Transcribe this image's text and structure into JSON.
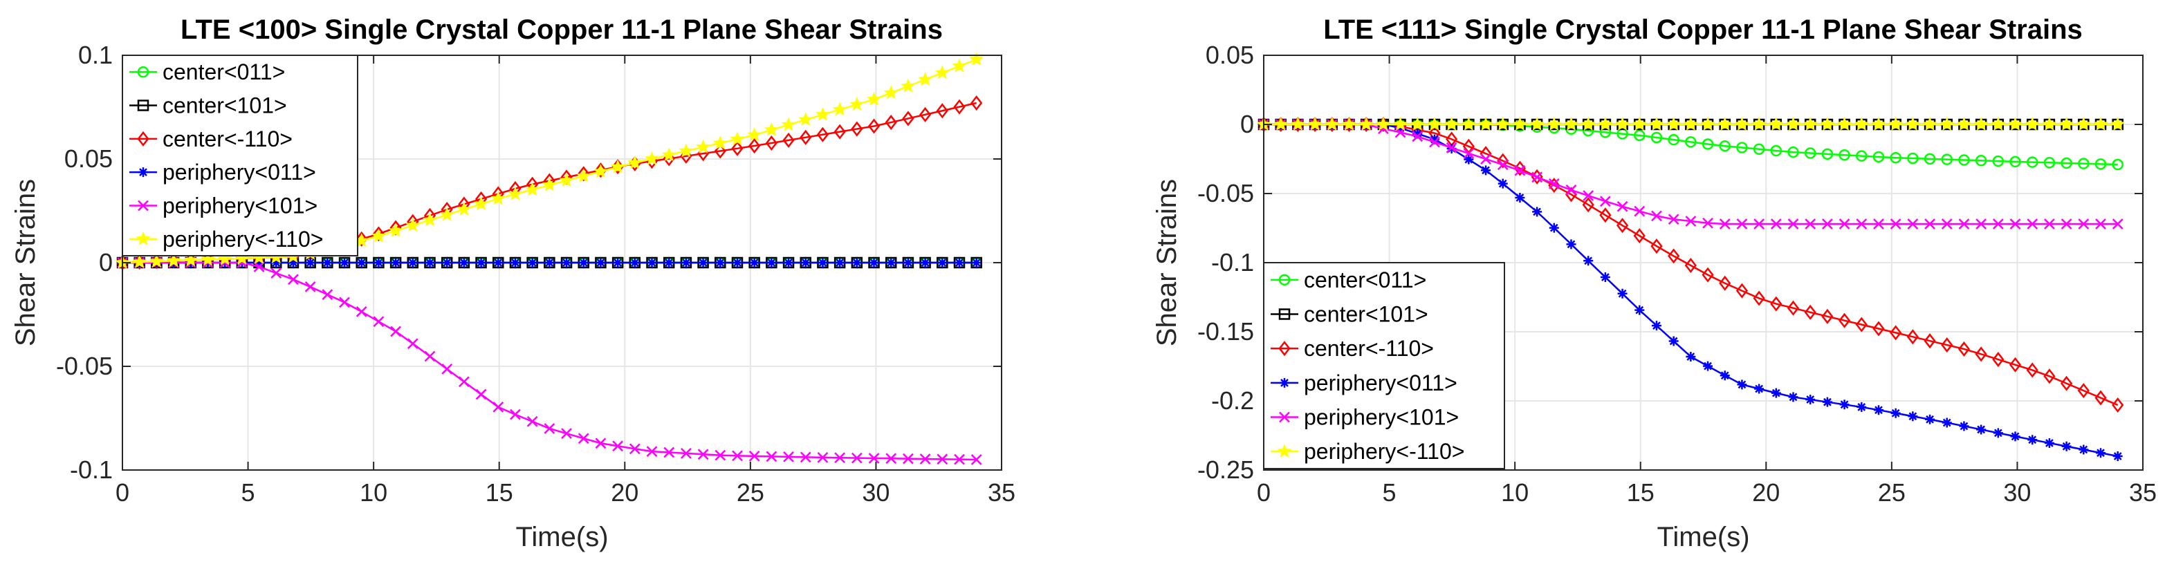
{
  "chart_data": [
    {
      "type": "line",
      "title": "LTE <100> Single Crystal Copper 11-1 Plane Shear Strains",
      "xlabel": "Time(s)",
      "ylabel": "Shear Strains",
      "xlim": [
        0,
        35
      ],
      "ylim": [
        -0.1,
        0.1
      ],
      "xticks": [
        0,
        5,
        10,
        15,
        20,
        25,
        30,
        35
      ],
      "yticks": [
        -0.1,
        -0.05,
        0,
        0.05,
        0.1
      ],
      "xtick_labels": [
        "0",
        "5",
        "10",
        "15",
        "20",
        "25",
        "30",
        "35"
      ],
      "ytick_labels": [
        "-0.1",
        "-0.05",
        "0",
        "0.05",
        "0.1"
      ],
      "legend_position": "top-left",
      "grid": true,
      "x": {
        "start": 0,
        "end": 34,
        "step": 0.68
      },
      "series": [
        {
          "name": "center<011>",
          "color": "#00ff00",
          "marker": "circle",
          "keypoints": [
            [
              0,
              0
            ],
            [
              34,
              0
            ]
          ]
        },
        {
          "name": "center<101>",
          "color": "#000000",
          "marker": "square",
          "keypoints": [
            [
              0,
              0
            ],
            [
              34,
              0
            ]
          ]
        },
        {
          "name": "center<-110>",
          "color": "#ff0000",
          "marker": "diamond",
          "keypoints": [
            [
              0,
              0
            ],
            [
              7,
              0.003
            ],
            [
              10,
              0.013
            ],
            [
              13,
              0.026
            ],
            [
              16,
              0.037
            ],
            [
              20,
              0.047
            ],
            [
              25,
              0.056
            ],
            [
              30,
              0.066
            ],
            [
              34,
              0.077
            ]
          ]
        },
        {
          "name": "periphery<011>",
          "color": "#0000ff",
          "marker": "asterisk",
          "keypoints": [
            [
              0,
              0
            ],
            [
              34,
              0
            ]
          ]
        },
        {
          "name": "periphery<101>",
          "color": "#ff00ff",
          "marker": "x",
          "keypoints": [
            [
              0,
              0
            ],
            [
              5,
              0
            ],
            [
              7,
              -0.009
            ],
            [
              9,
              -0.02
            ],
            [
              11,
              -0.034
            ],
            [
              13,
              -0.052
            ],
            [
              15,
              -0.07
            ],
            [
              17,
              -0.08
            ],
            [
              19,
              -0.087
            ],
            [
              21,
              -0.091
            ],
            [
              24,
              -0.093
            ],
            [
              28,
              -0.094
            ],
            [
              34,
              -0.095
            ]
          ]
        },
        {
          "name": "periphery<-110>",
          "color": "#ffff00",
          "marker": "star",
          "keypoints": [
            [
              0,
              0
            ],
            [
              7,
              0.003
            ],
            [
              10,
              0.012
            ],
            [
              15,
              0.031
            ],
            [
              20,
              0.047
            ],
            [
              25,
              0.061
            ],
            [
              30,
              0.079
            ],
            [
              34,
              0.098
            ]
          ]
        }
      ]
    },
    {
      "type": "line",
      "title": "LTE <111> Single Crystal Copper 11-1 Plane Shear Strains",
      "xlabel": "Time(s)",
      "ylabel": "Shear Strains",
      "xlim": [
        0,
        35
      ],
      "ylim": [
        -0.25,
        0.05
      ],
      "xticks": [
        0,
        5,
        10,
        15,
        20,
        25,
        30,
        35
      ],
      "yticks": [
        -0.25,
        -0.2,
        -0.15,
        -0.1,
        -0.05,
        0,
        0.05
      ],
      "xtick_labels": [
        "0",
        "5",
        "10",
        "15",
        "20",
        "25",
        "30",
        "35"
      ],
      "ytick_labels": [
        "-0.25",
        "-0.2",
        "-0.15",
        "-0.1",
        "-0.05",
        "0",
        "0.05"
      ],
      "legend_position": "bottom-left",
      "grid": true,
      "x": {
        "start": 0,
        "end": 34,
        "step": 0.68
      },
      "series": [
        {
          "name": "center<011>",
          "color": "#00ff00",
          "marker": "circle",
          "keypoints": [
            [
              0,
              0
            ],
            [
              9,
              0
            ],
            [
              12,
              -0.003
            ],
            [
              15,
              -0.008
            ],
            [
              18,
              -0.015
            ],
            [
              21,
              -0.02
            ],
            [
              25,
              -0.024
            ],
            [
              30,
              -0.027
            ],
            [
              34,
              -0.029
            ]
          ]
        },
        {
          "name": "center<101>",
          "color": "#000000",
          "marker": "square",
          "keypoints": [
            [
              0,
              0
            ],
            [
              34,
              0
            ]
          ]
        },
        {
          "name": "center<-110>",
          "color": "#ff0000",
          "marker": "diamond",
          "keypoints": [
            [
              0,
              0
            ],
            [
              5,
              0
            ],
            [
              7,
              -0.007
            ],
            [
              10,
              -0.03
            ],
            [
              12,
              -0.048
            ],
            [
              14,
              -0.07
            ],
            [
              16,
              -0.092
            ],
            [
              18,
              -0.112
            ],
            [
              20,
              -0.128
            ],
            [
              22,
              -0.137
            ],
            [
              25,
              -0.15
            ],
            [
              28,
              -0.163
            ],
            [
              31,
              -0.18
            ],
            [
              34,
              -0.203
            ]
          ]
        },
        {
          "name": "periphery<011>",
          "color": "#0000ff",
          "marker": "asterisk",
          "keypoints": [
            [
              0,
              0
            ],
            [
              5,
              0
            ],
            [
              7,
              -0.012
            ],
            [
              9,
              -0.035
            ],
            [
              11,
              -0.065
            ],
            [
              13,
              -0.1
            ],
            [
              15,
              -0.135
            ],
            [
              17,
              -0.168
            ],
            [
              19,
              -0.188
            ],
            [
              21,
              -0.197
            ],
            [
              24,
              -0.205
            ],
            [
              27,
              -0.215
            ],
            [
              30,
              -0.226
            ],
            [
              34,
              -0.24
            ]
          ]
        },
        {
          "name": "periphery<101>",
          "color": "#ff00ff",
          "marker": "x",
          "keypoints": [
            [
              0,
              0
            ],
            [
              4,
              0
            ],
            [
              6,
              -0.008
            ],
            [
              8,
              -0.02
            ],
            [
              10,
              -0.032
            ],
            [
              12,
              -0.046
            ],
            [
              14,
              -0.058
            ],
            [
              16,
              -0.068
            ],
            [
              18,
              -0.072
            ],
            [
              20,
              -0.072
            ],
            [
              34,
              -0.072
            ]
          ]
        },
        {
          "name": "periphery<-110>",
          "color": "#ffff00",
          "marker": "star",
          "keypoints": [
            [
              0,
              0
            ],
            [
              34,
              0
            ]
          ]
        }
      ]
    }
  ]
}
